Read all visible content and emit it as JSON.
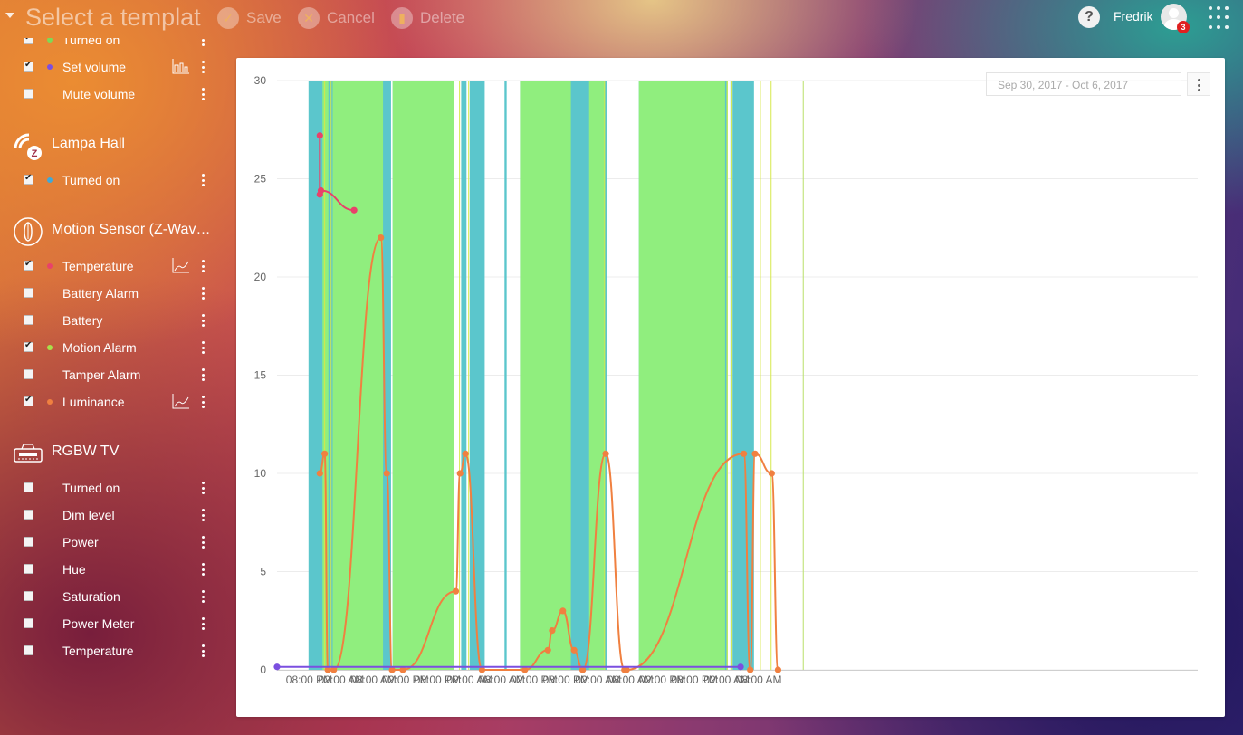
{
  "header": {
    "template_title": "Select a template",
    "save_label": "Save",
    "cancel_label": "Cancel",
    "delete_label": "Delete",
    "username": "Fredrik",
    "notification_count": "3",
    "help_label": "?"
  },
  "sidebar": {
    "top_items": [
      {
        "label": "Turned on",
        "checked": true,
        "color": "#7ed957"
      },
      {
        "label": "Set volume",
        "checked": true,
        "color": "#7b4fe0",
        "chart": true
      },
      {
        "label": "Mute volume",
        "checked": false
      }
    ],
    "devices": [
      {
        "title": "Lampa Hall",
        "icon": "zwave-icon",
        "items": [
          {
            "label": "Turned on",
            "checked": true,
            "color": "#3fa9d9"
          }
        ]
      },
      {
        "title": "Motion Sensor (Z-Wave Plus)",
        "icon": "motion-sensor-icon",
        "items": [
          {
            "label": "Temperature",
            "checked": true,
            "color": "#e8426a",
            "chart": true
          },
          {
            "label": "Battery Alarm",
            "checked": false
          },
          {
            "label": "Battery",
            "checked": false
          },
          {
            "label": "Motion Alarm",
            "checked": true,
            "color": "#a8e04a"
          },
          {
            "label": "Tamper Alarm",
            "checked": false
          },
          {
            "label": "Luminance",
            "checked": true,
            "color": "#f08040",
            "chart": true
          }
        ]
      },
      {
        "title": "RGBW TV",
        "icon": "rgbw-controller-icon",
        "items": [
          {
            "label": "Turned on",
            "checked": false
          },
          {
            "label": "Dim level",
            "checked": false
          },
          {
            "label": "Power",
            "checked": false
          },
          {
            "label": "Hue",
            "checked": false
          },
          {
            "label": "Saturation",
            "checked": false
          },
          {
            "label": "Power Meter",
            "checked": false
          },
          {
            "label": "Temperature",
            "checked": false
          }
        ]
      }
    ]
  },
  "chart": {
    "date_range": "Sep 30, 2017 - Oct 6, 2017"
  },
  "chart_data": {
    "type": "line",
    "ylim": [
      0,
      30
    ],
    "y_ticks": [
      0,
      5,
      10,
      15,
      20,
      25,
      30
    ],
    "xlim_hours": [
      0,
      172
    ],
    "x_ticks": [
      {
        "label": "08:00 PM",
        "h": 6
      },
      {
        "label": "02:00 AM",
        "h": 12
      },
      {
        "label": "08:00 AM",
        "h": 18
      },
      {
        "label": "02:00 PM",
        "h": 24
      },
      {
        "label": "08:00 PM",
        "h": 30
      },
      {
        "label": "02:00 AM",
        "h": 36
      },
      {
        "label": "08:00 AM",
        "h": 42
      },
      {
        "label": "02:00 PM",
        "h": 48
      },
      {
        "label": "08:00 PM",
        "h": 54
      },
      {
        "label": "02:00 AM",
        "h": 60
      },
      {
        "label": "08:00 AM",
        "h": 66
      },
      {
        "label": "02:00 PM",
        "h": 72
      },
      {
        "label": "08:00 PM",
        "h": 78
      },
      {
        "label": "02:00 AM",
        "h": 84
      },
      {
        "label": "08:00 AM",
        "h": 90
      }
    ],
    "on_bands": [
      {
        "series": "Lampa Hall - Turned on",
        "color": "#5bc6cc",
        "spans": [
          [
            5.9,
            19.9
          ],
          [
            21.6,
            33.1
          ],
          [
            45.4,
            61.4
          ],
          [
            67.6,
            84.2
          ]
        ]
      },
      {
        "series": "Turned on",
        "color": "#90ee7e",
        "spans": [
          [
            6.0,
            19.9
          ],
          [
            21.6,
            33.1
          ],
          [
            45.4,
            61.4
          ],
          [
            67.6,
            84.2
          ]
        ]
      }
    ],
    "motion_bands": {
      "series": "Motion Alarm",
      "color": "#5bc6cc",
      "spans": [
        [
          5.9,
          8.5
        ],
        [
          9.6,
          10.4
        ],
        [
          19.8,
          21.3
        ],
        [
          34.4,
          35.4
        ],
        [
          36.0,
          38.8
        ],
        [
          42.5,
          42.9
        ],
        [
          54.9,
          58.3
        ],
        [
          61.2,
          61.6
        ],
        [
          83.7,
          83.9
        ],
        [
          84.7,
          84.9
        ],
        [
          85.1,
          89.1
        ]
      ]
    },
    "thin_lines": [
      {
        "color": "#d6e84a",
        "hours": [
          8.9,
          10.1,
          34.1,
          35.8,
          61.2,
          84.1,
          85.0,
          90.3,
          92.3
        ]
      },
      {
        "color": "#b9e06a",
        "hours": [
          98.3
        ]
      }
    ],
    "series": [
      {
        "name": "Temperature",
        "color": "#e8426a",
        "points": [
          [
            8.0,
            27.2
          ],
          [
            8.0,
            24.2
          ],
          [
            8.2,
            24.4
          ],
          [
            14.4,
            23.4
          ]
        ]
      },
      {
        "name": "Luminance",
        "color": "#f08040",
        "points": [
          [
            8.0,
            10.0
          ],
          [
            8.9,
            11.0
          ],
          [
            9.5,
            0.0
          ],
          [
            10.6,
            0.0
          ],
          [
            19.4,
            22.0
          ],
          [
            20.5,
            10.0
          ],
          [
            21.5,
            0.0
          ],
          [
            23.5,
            0.0
          ],
          [
            33.4,
            4.0
          ],
          [
            34.2,
            10.0
          ],
          [
            35.2,
            11.0
          ],
          [
            38.3,
            0.0
          ],
          [
            46.3,
            0.0
          ],
          [
            50.6,
            1.0
          ],
          [
            51.4,
            2.0
          ],
          [
            53.4,
            3.0
          ],
          [
            55.5,
            1.0
          ],
          [
            57.1,
            0.0
          ],
          [
            57.1,
            0.0
          ],
          [
            61.4,
            11.0
          ],
          [
            64.9,
            0.0
          ],
          [
            65.3,
            0.0
          ],
          [
            87.2,
            11.0
          ],
          [
            88.4,
            0.0
          ],
          [
            89.3,
            11.0
          ],
          [
            92.4,
            10.0
          ],
          [
            93.6,
            0.0
          ]
        ]
      },
      {
        "name": "Set volume",
        "color": "#7b4fe0",
        "points": [
          [
            0.0,
            0.15
          ],
          [
            86.6,
            0.15
          ]
        ]
      }
    ]
  }
}
